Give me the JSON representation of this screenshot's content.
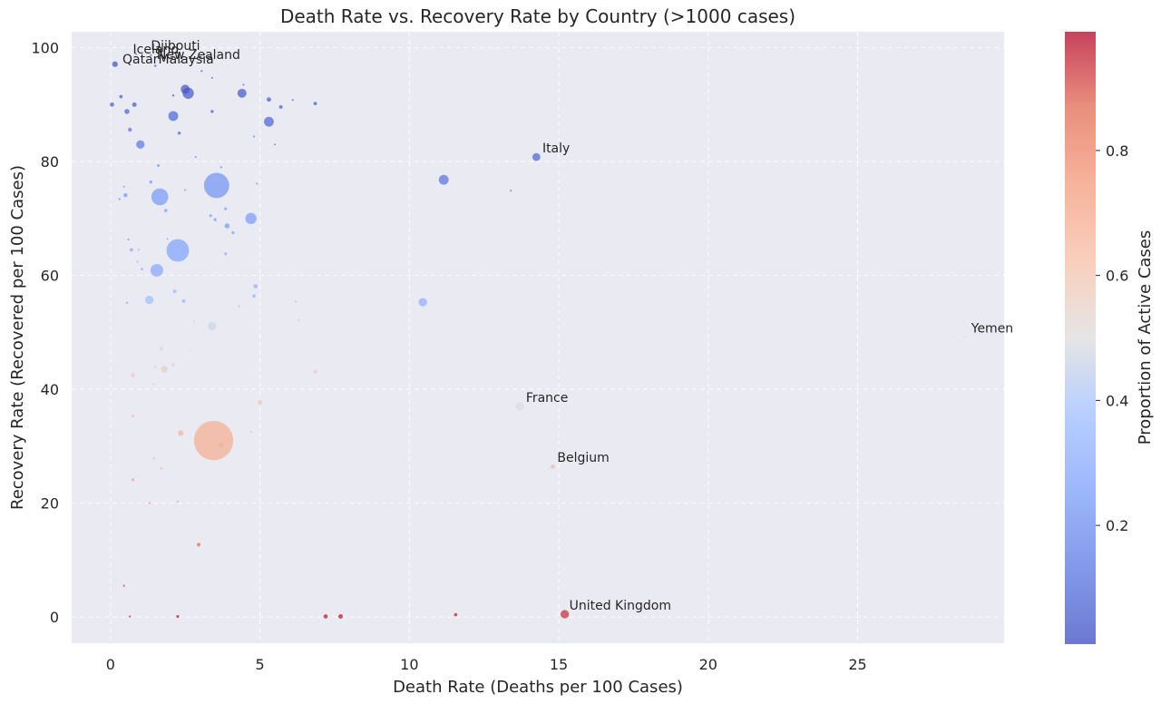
{
  "chart_data": {
    "type": "scatter",
    "title": "Death Rate vs. Recovery Rate by Country (>1000 cases)",
    "xlabel": "Death Rate (Deaths per 100 Cases)",
    "ylabel": "Recovery Rate (Recovered per 100 Cases)",
    "xlim": [
      -1.3,
      29.9
    ],
    "ylim": [
      -4.6,
      102.8
    ],
    "xticks": [
      0,
      5,
      10,
      15,
      20,
      25
    ],
    "yticks": [
      0,
      20,
      40,
      60,
      80,
      100
    ],
    "grid": true,
    "colorbar": {
      "label": "Proportion of Active Cases",
      "ticks": [
        0.2,
        0.4,
        0.6,
        0.8
      ],
      "range": [
        0.01,
        0.99
      ],
      "colormap": "coolwarm"
    },
    "point_fields": [
      "death_rate",
      "recovery_rate",
      "active_proportion",
      "size_rank"
    ],
    "points": [
      [
        0.15,
        97.1,
        0.03,
        2
      ],
      [
        0.05,
        90.0,
        0.07,
        1.5
      ],
      [
        0.35,
        91.4,
        0.06,
        1.2
      ],
      [
        0.55,
        88.8,
        0.08,
        1.8
      ],
      [
        0.8,
        90.0,
        0.06,
        1.6
      ],
      [
        0.65,
        85.6,
        0.12,
        1.4
      ],
      [
        1.0,
        83.0,
        0.14,
        3
      ],
      [
        2.1,
        88.0,
        0.09,
        3.5
      ],
      [
        2.5,
        92.7,
        0.04,
        3.2
      ],
      [
        2.6,
        92.0,
        0.05,
        4
      ],
      [
        4.4,
        92.0,
        0.05,
        3.2
      ],
      [
        5.3,
        90.9,
        0.06,
        1.6
      ],
      [
        5.3,
        87.0,
        0.08,
        3.5
      ],
      [
        5.7,
        89.6,
        0.07,
        1.3
      ],
      [
        6.85,
        90.2,
        0.05,
        1.2
      ],
      [
        2.3,
        85.0,
        0.09,
        1.1
      ],
      [
        1.5,
        96.8,
        0.04,
        0.8
      ],
      [
        2.1,
        91.6,
        0.06,
        0.8
      ],
      [
        3.4,
        88.8,
        0.08,
        1.1
      ],
      [
        1.65,
        73.8,
        0.24,
        6
      ],
      [
        3.55,
        75.8,
        0.22,
        9
      ],
      [
        2.25,
        64.4,
        0.27,
        8
      ],
      [
        1.55,
        60.9,
        0.29,
        4.5
      ],
      [
        4.7,
        70.0,
        0.25,
        4
      ],
      [
        3.9,
        68.7,
        0.26,
        1.8
      ],
      [
        1.85,
        71.4,
        0.26,
        1.2
      ],
      [
        0.5,
        74.1,
        0.22,
        1.4
      ],
      [
        1.35,
        76.4,
        0.22,
        1.1
      ],
      [
        4.85,
        58.1,
        0.32,
        1.5
      ],
      [
        4.8,
        56.4,
        0.34,
        1.2
      ],
      [
        2.15,
        57.2,
        0.34,
        1.2
      ],
      [
        2.45,
        55.5,
        0.35,
        1.3
      ],
      [
        1.3,
        55.7,
        0.38,
        3
      ],
      [
        3.4,
        51.1,
        0.47,
        3
      ],
      [
        3.35,
        70.5,
        0.25,
        1
      ],
      [
        3.5,
        69.8,
        0.26,
        1.1
      ],
      [
        3.85,
        71.7,
        0.25,
        1
      ],
      [
        4.1,
        67.5,
        0.27,
        1.1
      ],
      [
        0.7,
        64.5,
        0.28,
        1.2
      ],
      [
        1.05,
        61.1,
        0.31,
        0.9
      ],
      [
        0.6,
        66.3,
        0.27,
        0.8
      ],
      [
        1.6,
        79.3,
        0.18,
        0.9
      ],
      [
        3.7,
        79.0,
        0.17,
        0.7
      ],
      [
        3.85,
        63.8,
        0.29,
        1
      ],
      [
        4.3,
        54.6,
        0.37,
        0.7
      ],
      [
        6.3,
        52.1,
        0.45,
        0.8
      ],
      [
        0.55,
        55.2,
        0.35,
        0.9
      ],
      [
        11.15,
        76.8,
        0.12,
        3.5
      ],
      [
        14.25,
        80.8,
        0.08,
        2.8
      ],
      [
        10.45,
        55.3,
        0.33,
        3
      ],
      [
        13.4,
        74.9,
        0.15,
        0.7
      ],
      [
        28.6,
        49.3,
        0.46,
        0.5
      ],
      [
        13.7,
        37.0,
        0.5,
        3
      ],
      [
        14.8,
        26.4,
        0.64,
        1.5
      ],
      [
        15.2,
        0.5,
        0.94,
        3
      ],
      [
        3.45,
        31.0,
        0.68,
        14
      ],
      [
        3.7,
        30.2,
        0.67,
        1.6
      ],
      [
        2.35,
        32.3,
        0.66,
        2
      ],
      [
        1.8,
        43.5,
        0.56,
        2.5
      ],
      [
        1.7,
        47.1,
        0.52,
        1.4
      ],
      [
        1.5,
        43.9,
        0.55,
        1
      ],
      [
        0.75,
        42.5,
        0.57,
        1.5
      ],
      [
        2.1,
        44.3,
        0.55,
        1.2
      ],
      [
        5.0,
        37.7,
        0.62,
        1.6
      ],
      [
        6.85,
        43.1,
        0.55,
        1.5
      ],
      [
        0.75,
        35.3,
        0.64,
        0.9
      ],
      [
        1.45,
        27.9,
        0.7,
        0.7
      ],
      [
        1.7,
        26.1,
        0.72,
        0.6
      ],
      [
        0.75,
        24.1,
        0.74,
        1
      ],
      [
        1.3,
        20.0,
        0.78,
        0.7
      ],
      [
        2.25,
        20.3,
        0.78,
        0.6
      ],
      [
        2.95,
        12.7,
        0.86,
        1.3
      ],
      [
        0.45,
        5.5,
        0.93,
        0.7
      ],
      [
        0.65,
        0.1,
        0.97,
        0.7
      ],
      [
        2.25,
        0.1,
        0.98,
        1
      ],
      [
        7.2,
        0.1,
        0.97,
        1.5
      ],
      [
        7.7,
        0.1,
        0.97,
        1.6
      ],
      [
        11.55,
        0.4,
        0.96,
        1.2
      ],
      [
        0.85,
        98.9,
        0.02,
        0.5
      ],
      [
        1.35,
        98.7,
        0.02,
        0.5
      ],
      [
        2.55,
        98.2,
        0.02,
        0.5
      ],
      [
        2.35,
        97.5,
        0.02,
        0.5
      ],
      [
        1.6,
        98.4,
        0.02,
        0.5
      ],
      [
        3.05,
        95.9,
        0.04,
        0.7
      ],
      [
        4.45,
        93.5,
        0.05,
        0.6
      ],
      [
        3.4,
        94.7,
        0.04,
        0.5
      ],
      [
        6.1,
        90.8,
        0.06,
        0.6
      ],
      [
        5.5,
        83.0,
        0.12,
        0.6
      ],
      [
        4.8,
        84.4,
        0.11,
        0.5
      ],
      [
        2.85,
        80.8,
        0.15,
        0.5
      ],
      [
        4.9,
        76.1,
        0.19,
        0.6
      ],
      [
        2.5,
        75.0,
        0.2,
        0.6
      ],
      [
        0.3,
        73.4,
        0.22,
        0.8
      ],
      [
        0.45,
        75.6,
        0.21,
        0.5
      ],
      [
        0.9,
        62.4,
        0.3,
        0.6
      ],
      [
        0.95,
        64.5,
        0.29,
        0.5
      ],
      [
        1.9,
        66.4,
        0.28,
        0.6
      ],
      [
        2.8,
        51.9,
        0.45,
        0.6
      ],
      [
        2.65,
        46.8,
        0.52,
        0.5
      ],
      [
        1.45,
        40.9,
        0.58,
        0.5
      ],
      [
        4.7,
        32.5,
        0.66,
        0.5
      ],
      [
        6.2,
        55.4,
        0.36,
        0.5
      ]
    ],
    "annotations": [
      {
        "text": "Iceland",
        "x": 0.75,
        "y": 99.0
      },
      {
        "text": "Djibouti",
        "x": 1.35,
        "y": 99.6
      },
      {
        "text": "New Zealand",
        "x": 1.55,
        "y": 98.0
      },
      {
        "text": "Qatar",
        "x": 0.4,
        "y": 97.2
      },
      {
        "text": "Malaysia",
        "x": 1.6,
        "y": 97.2
      },
      {
        "text": "Italy",
        "x": 14.45,
        "y": 81.6
      },
      {
        "text": "Yemen",
        "x": 28.8,
        "y": 50.0
      },
      {
        "text": "France",
        "x": 13.9,
        "y": 37.8
      },
      {
        "text": "Belgium",
        "x": 14.95,
        "y": 27.3
      },
      {
        "text": "United Kingdom",
        "x": 15.35,
        "y": 1.3
      }
    ]
  }
}
